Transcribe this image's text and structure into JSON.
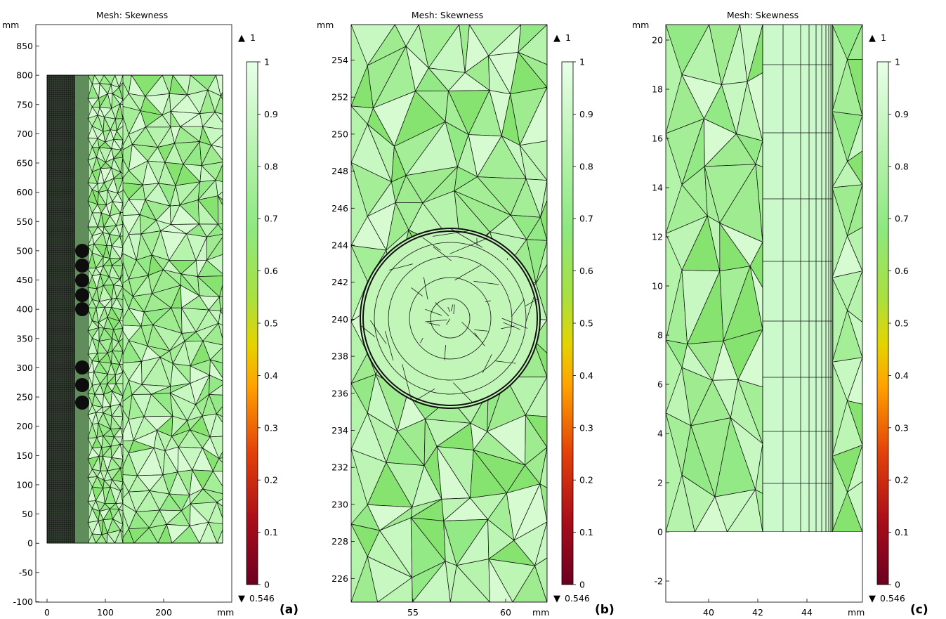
{
  "panels": [
    {
      "title": "Mesh: Skewness",
      "label": "(a)",
      "x_unit": "mm",
      "y_unit": "mm",
      "x_ticks": [
        "0",
        "100",
        "200"
      ],
      "y_ticks": [
        "850",
        "800",
        "750",
        "700",
        "650",
        "600",
        "550",
        "500",
        "450",
        "400",
        "350",
        "300",
        "250",
        "200",
        "150",
        "100",
        "50",
        "0",
        "-50",
        "-100"
      ],
      "colorbar": {
        "max_marker": "1",
        "min_marker": "0.546",
        "ticks": [
          "1",
          "0.9",
          "0.8",
          "0.7",
          "0.6",
          "0.5",
          "0.4",
          "0.3",
          "0.2",
          "0.1",
          "0"
        ]
      }
    },
    {
      "title": "Mesh: Skewness",
      "label": "(b)",
      "x_unit": "mm",
      "y_unit": "mm",
      "x_ticks": [
        "55",
        "60"
      ],
      "y_ticks": [
        "254",
        "252",
        "250",
        "248",
        "246",
        "244",
        "242",
        "240",
        "238",
        "236",
        "234",
        "232",
        "230",
        "228",
        "226"
      ],
      "colorbar": {
        "max_marker": "1",
        "min_marker": "0.546",
        "ticks": [
          "1",
          "0.9",
          "0.8",
          "0.7",
          "0.6",
          "0.5",
          "0.4",
          "0.3",
          "0.2",
          "0.1",
          "0"
        ]
      }
    },
    {
      "title": "Mesh: Skewness",
      "label": "(c)",
      "x_unit": "mm",
      "y_unit": "mm",
      "x_ticks": [
        "40",
        "42",
        "44"
      ],
      "y_ticks": [
        "20",
        "18",
        "16",
        "14",
        "12",
        "10",
        "8",
        "6",
        "4",
        "2",
        "0",
        "-2"
      ],
      "colorbar": {
        "max_marker": "1",
        "min_marker": "0.546",
        "ticks": [
          "1",
          "0.9",
          "0.8",
          "0.7",
          "0.6",
          "0.5",
          "0.4",
          "0.3",
          "0.2",
          "0.1",
          "0"
        ]
      }
    }
  ],
  "colors": {
    "mesh_light": "#ccf9cc",
    "mesh_mid": "#a6f29a",
    "mesh_dark": "#8ae878",
    "colormap": [
      "#6b0021",
      "#c21a12",
      "#ff7f00",
      "#f0c800",
      "#a8e040",
      "#9ee888",
      "#c5f7c0",
      "#e8ffe8"
    ]
  }
}
